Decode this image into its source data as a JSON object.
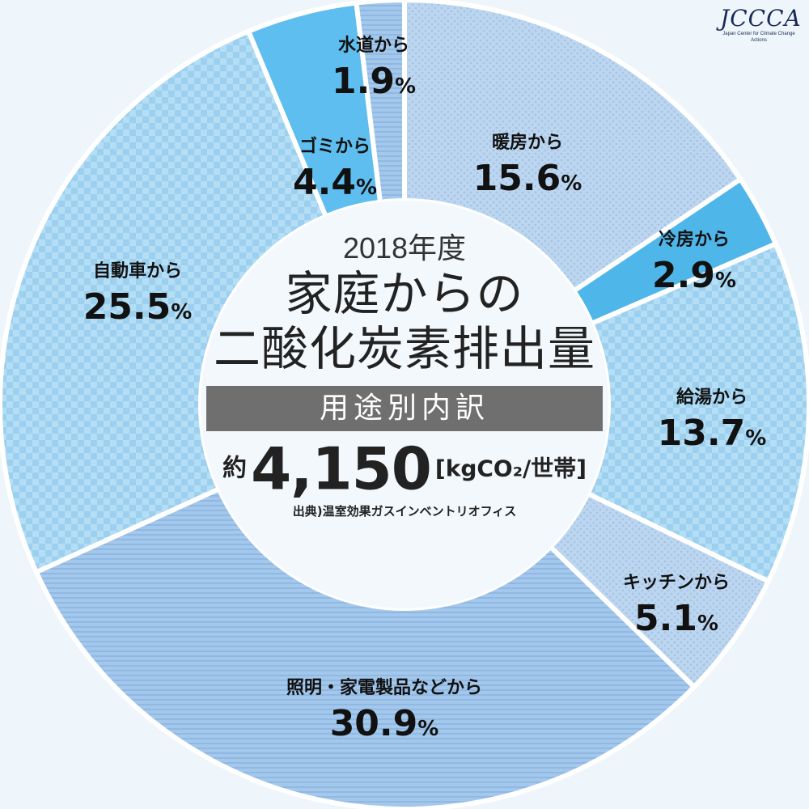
{
  "chart_data": {
    "type": "pie",
    "subtype": "donut",
    "year": "2018年度",
    "title_lines": [
      "家庭からの",
      "二酸化炭素排出量"
    ],
    "breakdown_label": "用途別内訳",
    "total": {
      "prefix": "約",
      "value": "4,150",
      "unit": "[kgCO₂/世帯]"
    },
    "source": "出典)温室効果ガスインベントリオフィス",
    "slices": [
      {
        "label": "暖房から",
        "value": 15.6,
        "value_label": "15.6",
        "color": "#bcd9f2",
        "pattern": "dots"
      },
      {
        "label": "冷房から",
        "value": 2.9,
        "value_label": "2.9",
        "color": "#4fb6ea",
        "pattern": "solid"
      },
      {
        "label": "給湯から",
        "value": 13.7,
        "value_label": "13.7",
        "color": "#aad9f4",
        "pattern": "checker"
      },
      {
        "label": "キッチンから",
        "value": 5.1,
        "value_label": "5.1",
        "color": "#b9d6f1",
        "pattern": "dots"
      },
      {
        "label": "照明・家電製品などから",
        "value": 30.9,
        "value_label": "30.9",
        "color": "#9cc3ea",
        "pattern": "stripes"
      },
      {
        "label": "自動車から",
        "value": 25.5,
        "value_label": "25.5",
        "color": "#aad9f4",
        "pattern": "checker"
      },
      {
        "label": "ゴミから",
        "value": 4.4,
        "value_label": "4.4",
        "color": "#5ebeef",
        "pattern": "solid"
      },
      {
        "label": "水道から",
        "value": 1.9,
        "value_label": "1.9",
        "color": "#9cc3ea",
        "pattern": "stripes"
      }
    ],
    "percent_sign": "%"
  },
  "logo": {
    "mark": "JCCCA",
    "subtitle": "Japan Center for Climate Change Actions"
  }
}
